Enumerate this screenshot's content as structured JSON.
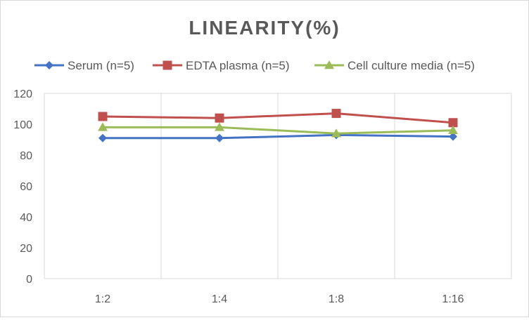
{
  "chart_data": {
    "type": "line",
    "title": "LINEARITY(%)",
    "xlabel": "",
    "ylabel": "",
    "categories": [
      "1:2",
      "1:4",
      "1:8",
      "1:16"
    ],
    "ylim": [
      0,
      120
    ],
    "yticks": [
      0,
      20,
      40,
      60,
      80,
      100,
      120
    ],
    "grid": "vertical",
    "legend_position": "top",
    "series": [
      {
        "name": "Serum (n=5)",
        "values": [
          91,
          91,
          93,
          92
        ],
        "color": "#4472c4",
        "marker": "diamond"
      },
      {
        "name": "EDTA plasma (n=5)",
        "values": [
          105,
          104,
          107,
          101
        ],
        "color": "#c0504d",
        "marker": "square"
      },
      {
        "name": "Cell culture media (n=5)",
        "values": [
          98,
          98,
          94,
          96
        ],
        "color": "#9bbb59",
        "marker": "triangle"
      }
    ]
  }
}
